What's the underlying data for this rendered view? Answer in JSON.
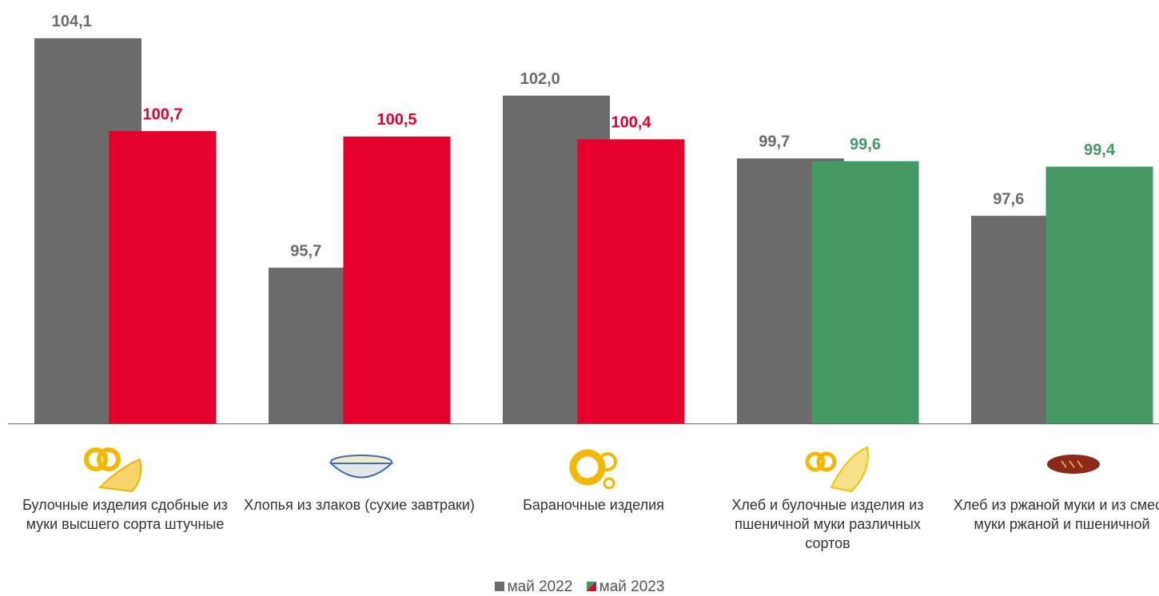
{
  "chart_data": {
    "type": "bar",
    "categories": [
      "Булочные изделия сдобные из муки высшего сорта штучные",
      "Хлопья из злаков (сухие завтраки)",
      "Бараночные изделия",
      "Хлеб и булочные изделия из пшеничной муки различных сортов",
      "Хлеб из ржаной муки и из смеси муки ржаной и пшеничной"
    ],
    "series": [
      {
        "name": "май 2022",
        "color": "#6b6b6b",
        "values": [
          104.1,
          95.7,
          102.0,
          99.7,
          97.6
        ],
        "value_labels": [
          "104,1",
          "95,7",
          "102,0",
          "99,7",
          "97,6"
        ]
      },
      {
        "name": "май 2023",
        "colors": [
          "#e4002b",
          "#e4002b",
          "#e4002b",
          "#459a63",
          "#459a63"
        ],
        "values": [
          100.7,
          100.5,
          100.4,
          99.6,
          99.4
        ],
        "value_labels": [
          "100,7",
          "100,5",
          "100,4",
          "99,6",
          "99,4"
        ]
      }
    ],
    "ylim": [
      90,
      105.5
    ],
    "grid": false
  }
}
